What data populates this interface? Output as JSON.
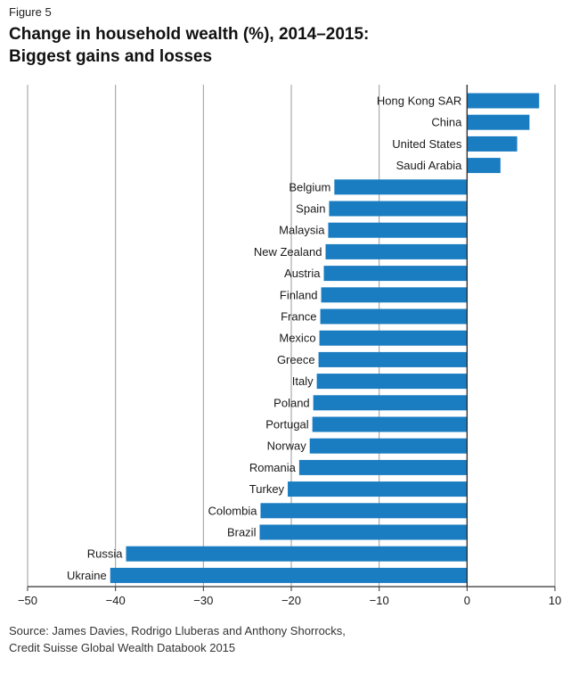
{
  "figure_label": "Figure 5",
  "title_line1": "Change in household wealth (%), 2014–2015:",
  "title_line2": "Biggest gains and losses",
  "source_line1": "Source: James Davies, Rodrigo Lluberas and Anthony Shorrocks,",
  "source_line2": "Credit Suisse Global Wealth Databook 2015",
  "colors": {
    "bar": "#1a7cc1",
    "grid": "#9a9a9a",
    "axis": "#333333"
  },
  "chart_data": {
    "type": "bar",
    "orientation": "horizontal",
    "title": "Change in household wealth (%), 2014–2015: Biggest gains and losses",
    "xlabel": "",
    "ylabel": "",
    "xlim": [
      -50,
      10
    ],
    "xticks": [
      -50,
      -40,
      -30,
      -20,
      -10,
      0,
      10
    ],
    "xtick_labels": [
      "−50",
      "−40",
      "−30",
      "−20",
      "−10",
      "0",
      "10"
    ],
    "grid": "vertical",
    "categories": [
      "Hong Kong SAR",
      "China",
      "United States",
      "Saudi Arabia",
      "Belgium",
      "Spain",
      "Malaysia",
      "New Zealand",
      "Austria",
      "Finland",
      "France",
      "Mexico",
      "Greece",
      "Italy",
      "Poland",
      "Portugal",
      "Norway",
      "Romania",
      "Turkey",
      "Colombia",
      "Brazil",
      "Russia",
      "Ukraine"
    ],
    "values": [
      8.2,
      7.1,
      5.7,
      3.8,
      -15.1,
      -15.7,
      -15.8,
      -16.1,
      -16.3,
      -16.6,
      -16.7,
      -16.8,
      -16.9,
      -17.1,
      -17.5,
      -17.6,
      -17.9,
      -19.1,
      -20.4,
      -23.5,
      -23.6,
      -38.8,
      -40.6
    ]
  }
}
